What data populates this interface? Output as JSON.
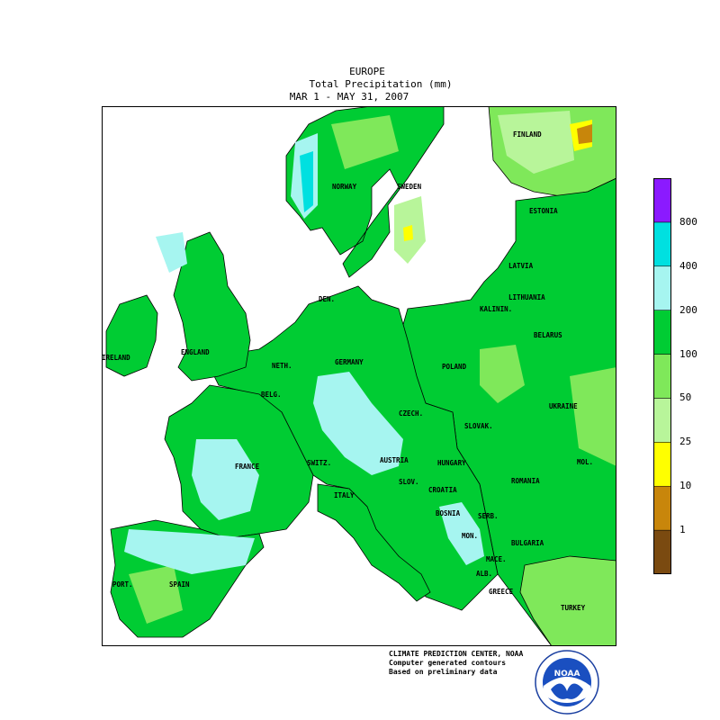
{
  "header": {
    "region": "EUROPE",
    "variable": "Total Precipitation (mm)",
    "period": "MAR  1 - MAY 31, 2007"
  },
  "legend": {
    "levels": [
      "1",
      "10",
      "25",
      "50",
      "100",
      "200",
      "400",
      "800"
    ],
    "colors": [
      "#7a4a10",
      "#c8860b",
      "#ffff00",
      "#b8f59a",
      "#7fe85a",
      "#00cc33",
      "#a6f5f0",
      "#00e0e0",
      "#8b1aff"
    ]
  },
  "countries": {
    "finland": "FINLAND",
    "sweden": "SWEDEN",
    "norway": "NORWAY",
    "estonia": "ESTONIA",
    "latvia": "LATVIA",
    "lithuania": "LITHUANIA",
    "kalinin": "KALININ.",
    "belarus": "BELARUS",
    "den": "DEN.",
    "ireland": "IRELAND",
    "england": "ENGLAND",
    "neth": "NETH.",
    "germany": "GERMANY",
    "poland": "POLAND",
    "belg": "BELG.",
    "czech": "CZECH.",
    "slovak": "SLOVAK.",
    "ukraine": "UKRAINE",
    "france": "FRANCE",
    "switz": "SWITZ.",
    "austria": "AUSTRIA",
    "hungary": "HUNGARY",
    "mol": "MOL.",
    "romania": "ROMANIA",
    "italy": "ITALY",
    "slov": "SLOV.",
    "croatia": "CROATIA",
    "bosnia": "BOSNIA",
    "serb": "SERB.",
    "mon": "MON.",
    "bulgaria": "BULGARIA",
    "mace": "MACE.",
    "alb": "ALB.",
    "greece": "GREECE",
    "port": "PORT.",
    "spain": "SPAIN",
    "turkey": "TURKEY"
  },
  "credits": {
    "line1": "CLIMATE PREDICTION CENTER, NOAA",
    "line2": "Computer generated contours",
    "line3": "Based on preliminary data"
  },
  "logo": {
    "text": "NOAA"
  }
}
